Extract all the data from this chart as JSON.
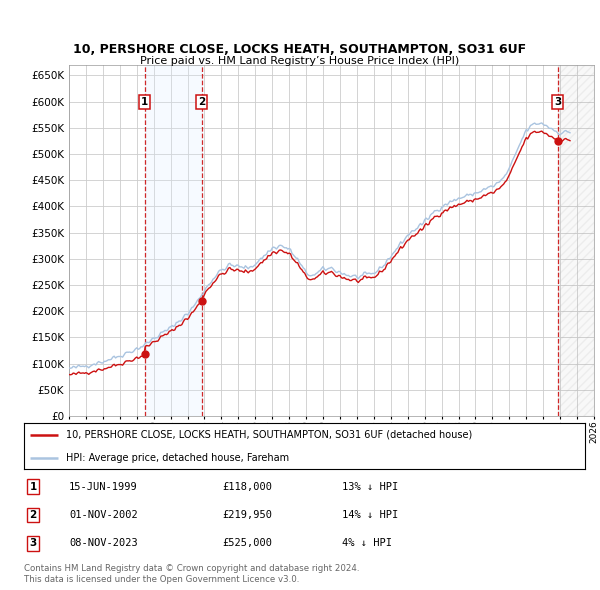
{
  "title": "10, PERSHORE CLOSE, LOCKS HEATH, SOUTHAMPTON, SO31 6UF",
  "subtitle": "Price paid vs. HM Land Registry’s House Price Index (HPI)",
  "legend_line1": "10, PERSHORE CLOSE, LOCKS HEATH, SOUTHAMPTON, SO31 6UF (detached house)",
  "legend_line2": "HPI: Average price, detached house, Fareham",
  "footer1": "Contains HM Land Registry data © Crown copyright and database right 2024.",
  "footer2": "This data is licensed under the Open Government Licence v3.0.",
  "sale_events": [
    {
      "label": "1",
      "date": "15-JUN-1999",
      "price": 118000,
      "pct": "13% ↓ HPI",
      "x": 1999.46
    },
    {
      "label": "2",
      "date": "01-NOV-2002",
      "price": 219950,
      "pct": "14% ↓ HPI",
      "x": 2002.83
    },
    {
      "label": "3",
      "date": "08-NOV-2023",
      "price": 525000,
      "pct": "4% ↓ HPI",
      "x": 2023.85
    }
  ],
  "hpi_color": "#aac4e0",
  "price_color": "#cc1111",
  "vline_color": "#cc1111",
  "shade_color": "#ddeeff",
  "hatch_color": "#cccccc",
  "background_color": "#ffffff",
  "grid_color": "#cccccc",
  "ylim": [
    0,
    670000
  ],
  "xlim_start": 1995.0,
  "xlim_end": 2026.0,
  "yticks": [
    0,
    50000,
    100000,
    150000,
    200000,
    250000,
    300000,
    350000,
    400000,
    450000,
    500000,
    550000,
    600000,
    650000
  ]
}
